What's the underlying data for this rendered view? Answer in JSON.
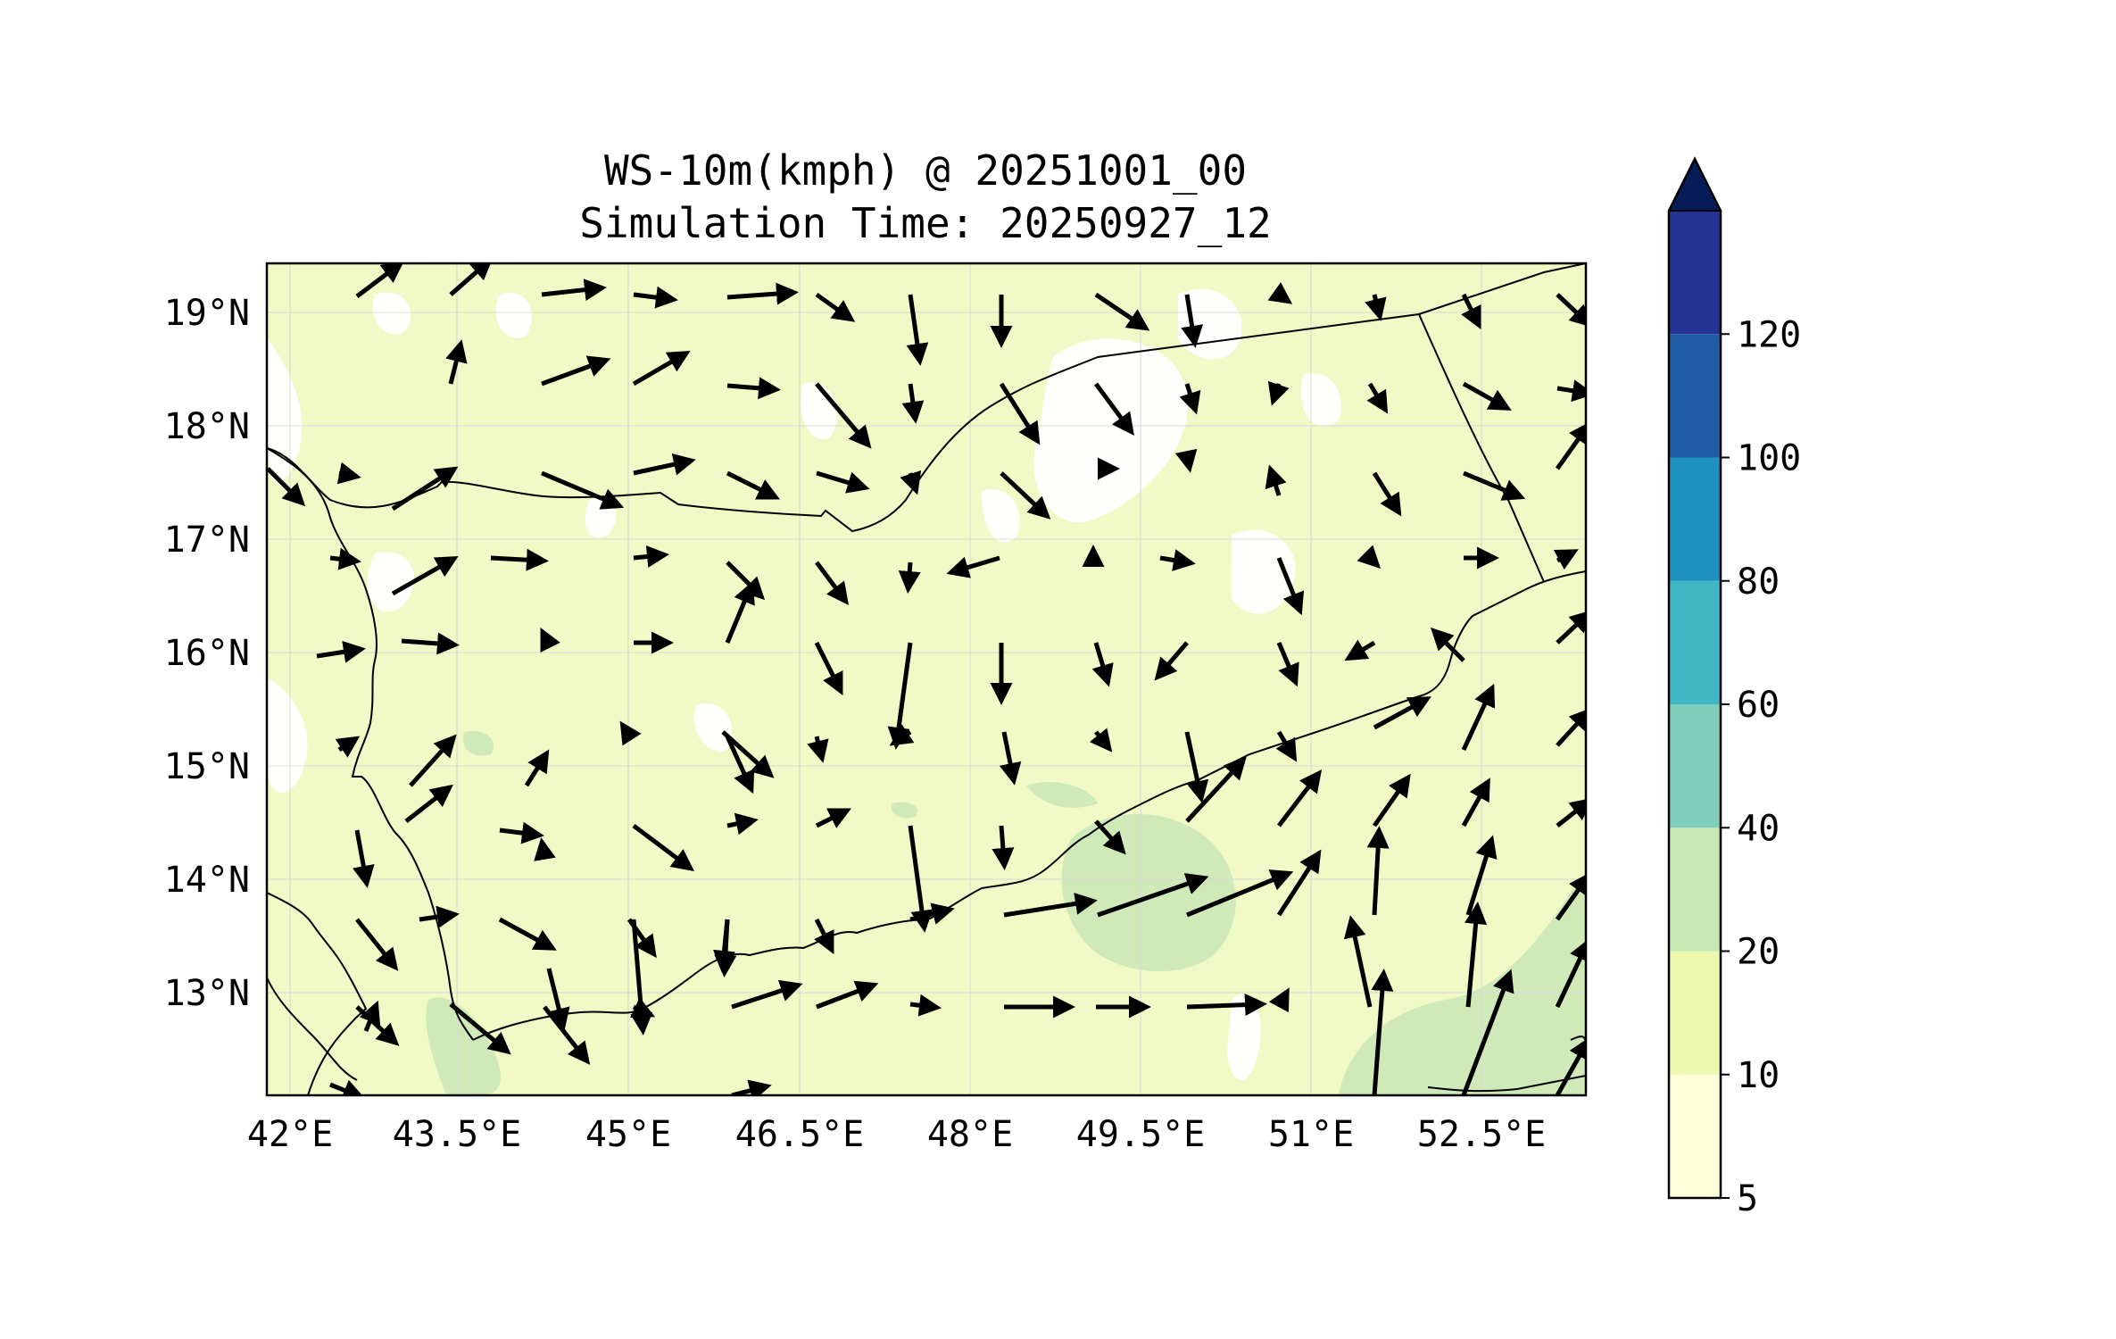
{
  "title": {
    "line1": "WS-10m(kmph) @ 20251001_00",
    "line2": "Simulation Time: 20250927_12"
  },
  "map": {
    "lon_range": [
      41.9,
      53.6
    ],
    "lat_range": [
      12.1,
      19.45
    ],
    "x_ticks": [
      "42°E",
      "43.5°E",
      "45°E",
      "46.5°E",
      "48°E",
      "49.5°E",
      "51°E",
      "52.5°E"
    ],
    "y_ticks": [
      "19°N",
      "18°N",
      "17°N",
      "16°N",
      "15°N",
      "14°N",
      "13°N"
    ],
    "background_fill": "#f1f9c6"
  },
  "colorbar": {
    "levels": [
      "5",
      "10",
      "20",
      "40",
      "60",
      "80",
      "100",
      "120"
    ],
    "colors": [
      "#ffffd9",
      "#edf8b1",
      "#c7e9b4",
      "#7fcdbb",
      "#41b6c4",
      "#1d91c0",
      "#225ea8",
      "#253494"
    ],
    "extend_color": "#081d58",
    "extend": "max"
  },
  "chart_data": {
    "type": "map",
    "variable": "WS-10m(kmph)",
    "wind_vectors_description": "Wind barbs/arrows over Yemen region; predominantly SE/S flow inland, W-E flow over Gulf of Aden, N flow over Arabian Sea coast",
    "contour_levels": [
      5,
      10,
      20,
      40,
      60,
      80,
      100,
      120
    ]
  }
}
